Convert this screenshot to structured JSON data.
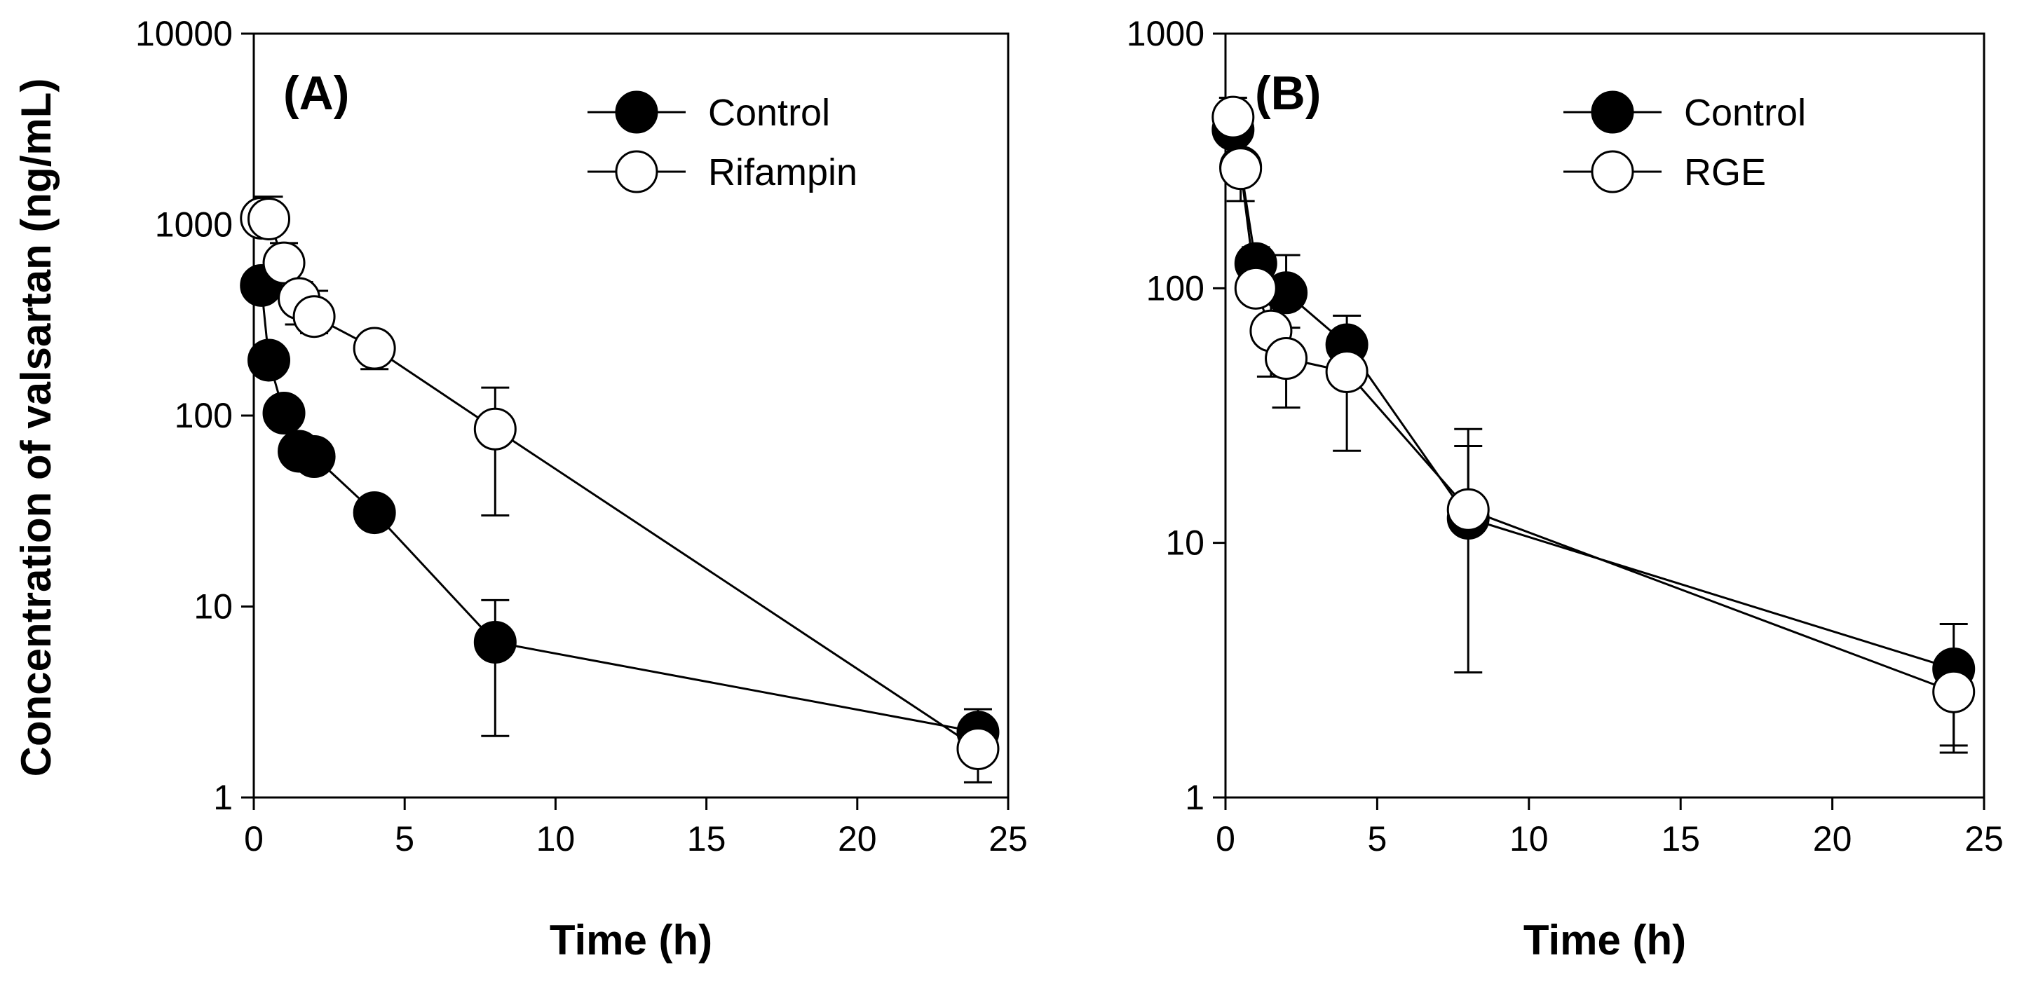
{
  "figure": {
    "ylabel": "Concentration of valsartan (ng/mL)"
  },
  "chart_data": [
    {
      "type": "line",
      "panel_label": "(A)",
      "xlabel": "Time (h)",
      "ylabel": "Concentration of valsartan (ng/mL)",
      "yscale": "log",
      "xlim": [
        0,
        25
      ],
      "ylim": [
        1,
        10000
      ],
      "xticks": [
        0,
        5,
        10,
        15,
        20,
        25
      ],
      "yticks": [
        1,
        10,
        100,
        1000,
        10000
      ],
      "xtick_labels": [
        "0",
        "5",
        "10",
        "15",
        "20",
        "25"
      ],
      "ytick_labels": [
        "1",
        "10",
        "100",
        "1000",
        "10000"
      ],
      "legend_position": "top-right",
      "series": [
        {
          "name": "Control",
          "marker": "filled-circle",
          "x": [
            0.25,
            0.5,
            1,
            1.5,
            2,
            4,
            8,
            24
          ],
          "y": [
            480,
            195,
            103,
            65,
            61,
            31,
            6.5,
            2.2
          ],
          "err_up": [
            null,
            null,
            null,
            null,
            null,
            null,
            10.8,
            2.9
          ],
          "err_down": [
            null,
            null,
            null,
            null,
            null,
            null,
            2.1,
            1.5
          ]
        },
        {
          "name": "Rifampin",
          "marker": "open-circle",
          "x": [
            0.25,
            0.5,
            1,
            1.5,
            2,
            4,
            8,
            24
          ],
          "y": [
            1080,
            1070,
            630,
            410,
            330,
            225,
            85,
            1.8
          ],
          "err_up": [
            null,
            1400,
            800,
            500,
            450,
            null,
            140,
            null
          ],
          "err_down": [
            null,
            null,
            null,
            300,
            270,
            175,
            30,
            1.2
          ]
        }
      ]
    },
    {
      "type": "line",
      "panel_label": "(B)",
      "xlabel": "Time (h)",
      "ylabel": "",
      "yscale": "log",
      "xlim": [
        0,
        25
      ],
      "ylim": [
        1,
        1000
      ],
      "xticks": [
        0,
        5,
        10,
        15,
        20,
        25
      ],
      "yticks": [
        1,
        10,
        100,
        1000
      ],
      "xtick_labels": [
        "0",
        "5",
        "10",
        "15",
        "20",
        "25"
      ],
      "ytick_labels": [
        "1",
        "10",
        "100",
        "1000"
      ],
      "legend_position": "top-right",
      "series": [
        {
          "name": "Control",
          "marker": "filled-circle",
          "x": [
            0.25,
            0.5,
            1,
            2,
            4,
            8,
            24
          ],
          "y": [
            420,
            300,
            125,
            96,
            60,
            12.5,
            3.2
          ],
          "err_up": [
            560,
            null,
            145,
            135,
            78,
            24,
            4.8
          ],
          "err_down": [
            null,
            220,
            null,
            null,
            null,
            3.1,
            1.6
          ]
        },
        {
          "name": "RGE",
          "marker": "open-circle",
          "x": [
            0.25,
            0.5,
            1,
            1.5,
            2,
            4,
            8,
            24
          ],
          "y": [
            470,
            295,
            100,
            68,
            53,
            47,
            13.5,
            2.6
          ],
          "err_up": [
            null,
            null,
            null,
            90,
            70,
            null,
            28,
            null
          ],
          "err_down": [
            null,
            null,
            null,
            45,
            34,
            23,
            null,
            1.5
          ]
        }
      ]
    }
  ]
}
